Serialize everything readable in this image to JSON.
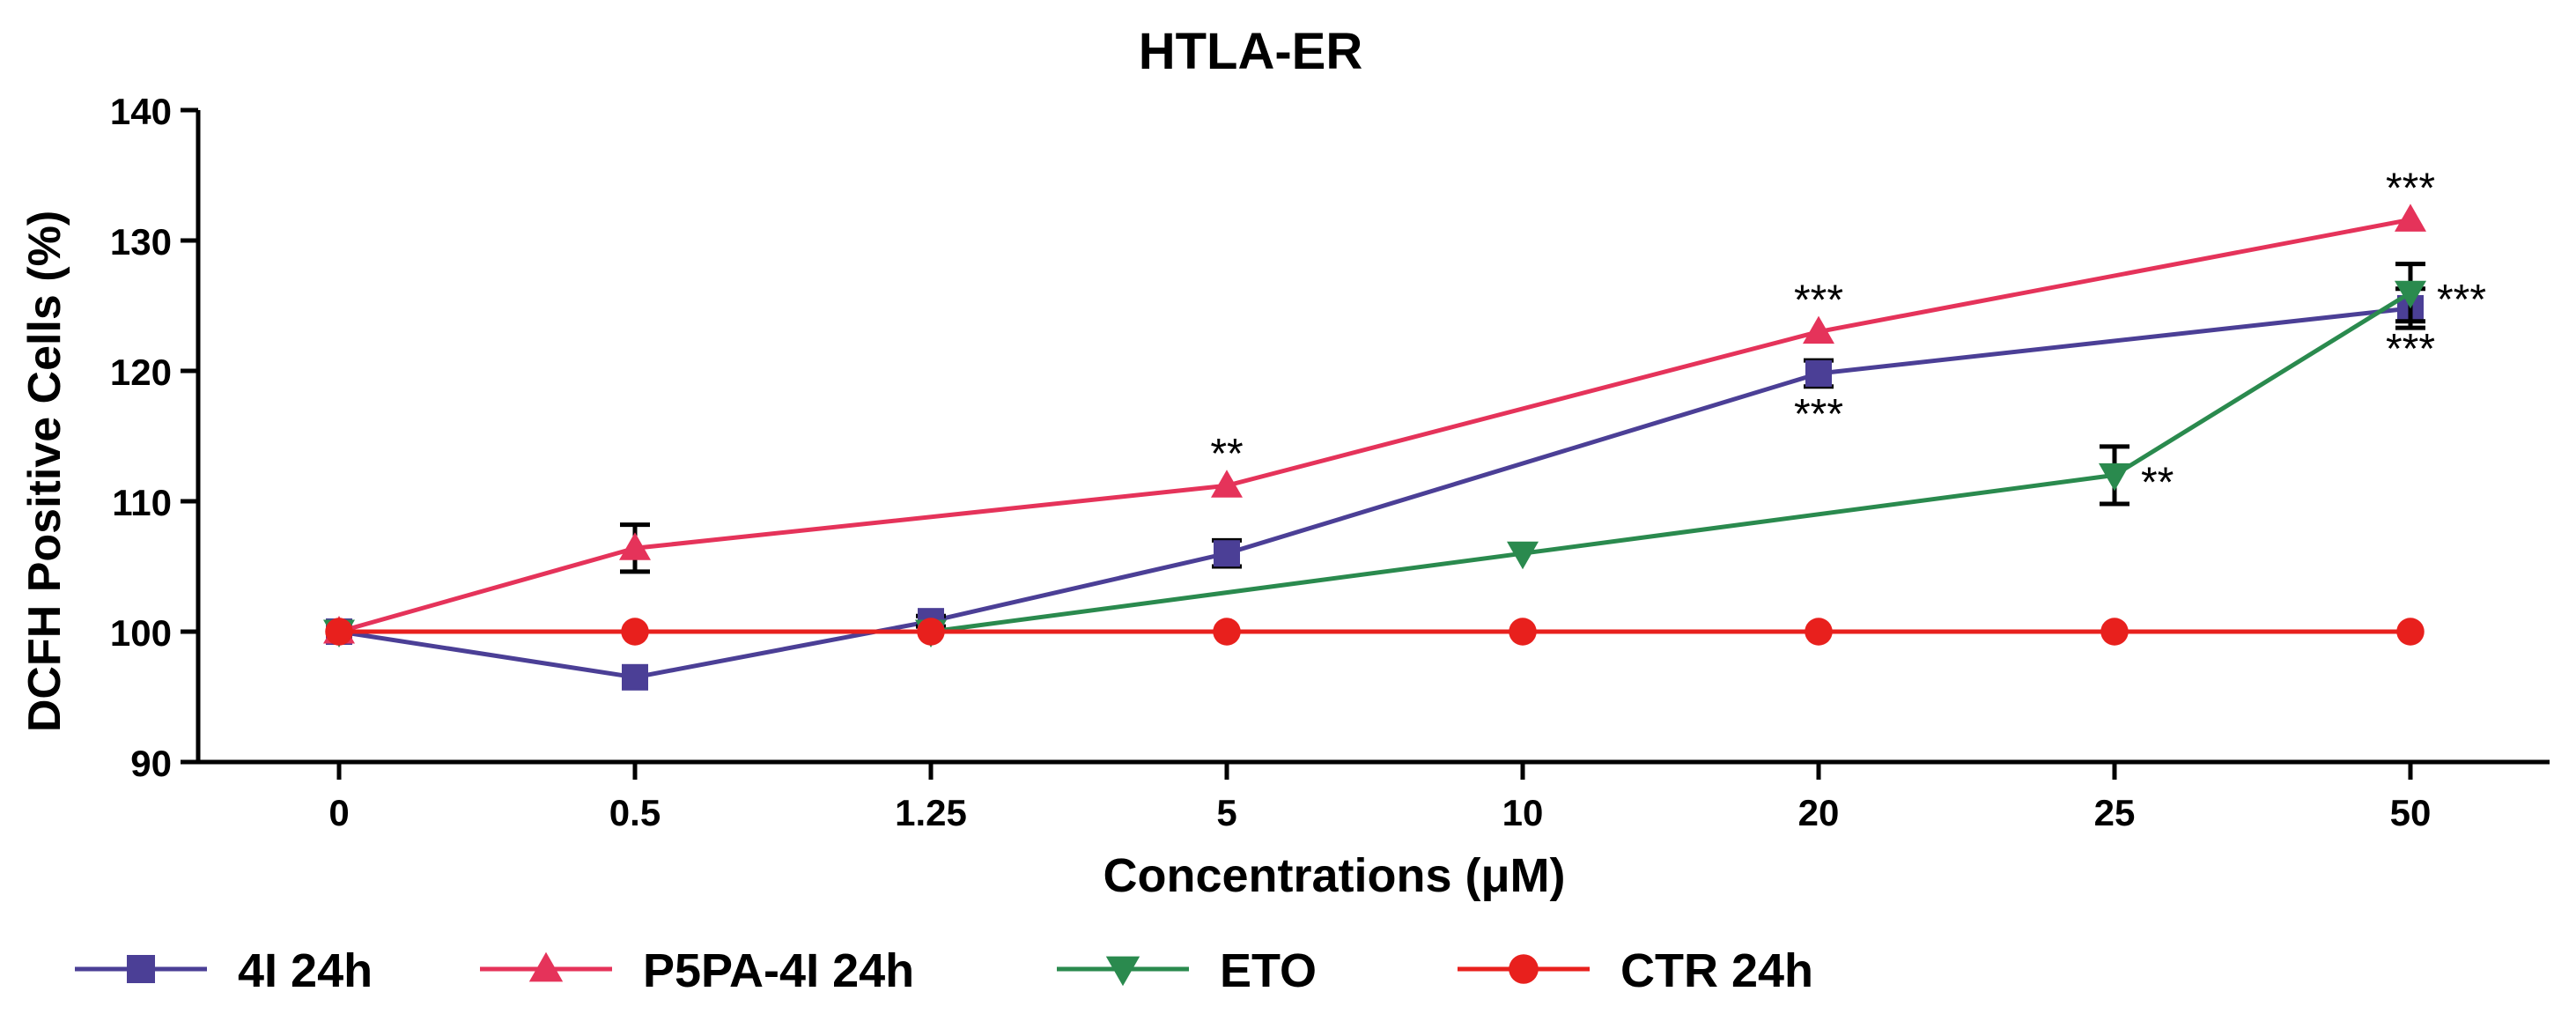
{
  "chart_data": {
    "type": "line",
    "title": "HTLA-ER",
    "xlabel": "Concentrations (μM)",
    "ylabel": "DCFH Positive Cells (%)",
    "categories": [
      "0",
      "0.5",
      "1.25",
      "5",
      "10",
      "20",
      "25",
      "50"
    ],
    "ylim": [
      90,
      140
    ],
    "yticks": [
      90,
      100,
      110,
      120,
      130,
      140
    ],
    "legend_position": "bottom",
    "series": [
      {
        "name": "4I 24h",
        "color": "#4b3f96",
        "marker": "square",
        "points": [
          {
            "x": "0",
            "y": 100,
            "err": 0
          },
          {
            "x": "0.5",
            "y": 96.5,
            "err": 0
          },
          {
            "x": "1.25",
            "y": 100.8,
            "err": 0.4
          },
          {
            "x": "5",
            "y": 106,
            "err": 1.0
          },
          {
            "x": "20",
            "y": 119.8,
            "err": 1.0
          },
          {
            "x": "50",
            "y": 124.8,
            "err": 1.5
          }
        ]
      },
      {
        "name": "P5PA-4I 24h",
        "color": "#e5335a",
        "marker": "triangle-up",
        "points": [
          {
            "x": "0",
            "y": 100,
            "err": 0
          },
          {
            "x": "0.5",
            "y": 106.4,
            "err": 1.8
          },
          {
            "x": "5",
            "y": 111.2,
            "err": 0
          },
          {
            "x": "20",
            "y": 123,
            "err": 0
          },
          {
            "x": "50",
            "y": 131.6,
            "err": 0
          }
        ]
      },
      {
        "name": "ETO",
        "color": "#2a8a4e",
        "marker": "triangle-down",
        "points": [
          {
            "x": "0",
            "y": 100,
            "err": 0
          },
          {
            "x": "1.25",
            "y": 100,
            "err": 0
          },
          {
            "x": "10",
            "y": 106,
            "err": 0
          },
          {
            "x": "25",
            "y": 112,
            "err": 2.2
          },
          {
            "x": "50",
            "y": 126,
            "err": 2.2
          }
        ]
      },
      {
        "name": "CTR 24h",
        "color": "#e8201d",
        "marker": "circle",
        "points": [
          {
            "x": "0",
            "y": 100,
            "err": 0
          },
          {
            "x": "0.5",
            "y": 100,
            "err": 0
          },
          {
            "x": "1.25",
            "y": 100,
            "err": 0
          },
          {
            "x": "5",
            "y": 100,
            "err": 0
          },
          {
            "x": "10",
            "y": 100,
            "err": 0
          },
          {
            "x": "20",
            "y": 100,
            "err": 0
          },
          {
            "x": "25",
            "y": 100,
            "err": 0
          },
          {
            "x": "50",
            "y": 100,
            "err": 0
          }
        ]
      }
    ],
    "annotations": [
      {
        "text": "**",
        "x": "5",
        "y": 111.2,
        "placement": "above"
      },
      {
        "text": "***",
        "x": "20",
        "y": 123,
        "placement": "above"
      },
      {
        "text": "***",
        "x": "20",
        "y": 119.8,
        "placement": "below"
      },
      {
        "text": "**",
        "x": "25",
        "y": 112,
        "placement": "right"
      },
      {
        "text": "***",
        "x": "50",
        "y": 131.6,
        "placement": "above"
      },
      {
        "text": "***",
        "x": "50",
        "y": 126,
        "placement": "right"
      },
      {
        "text": "***",
        "x": "50",
        "y": 124.8,
        "placement": "below"
      }
    ]
  }
}
